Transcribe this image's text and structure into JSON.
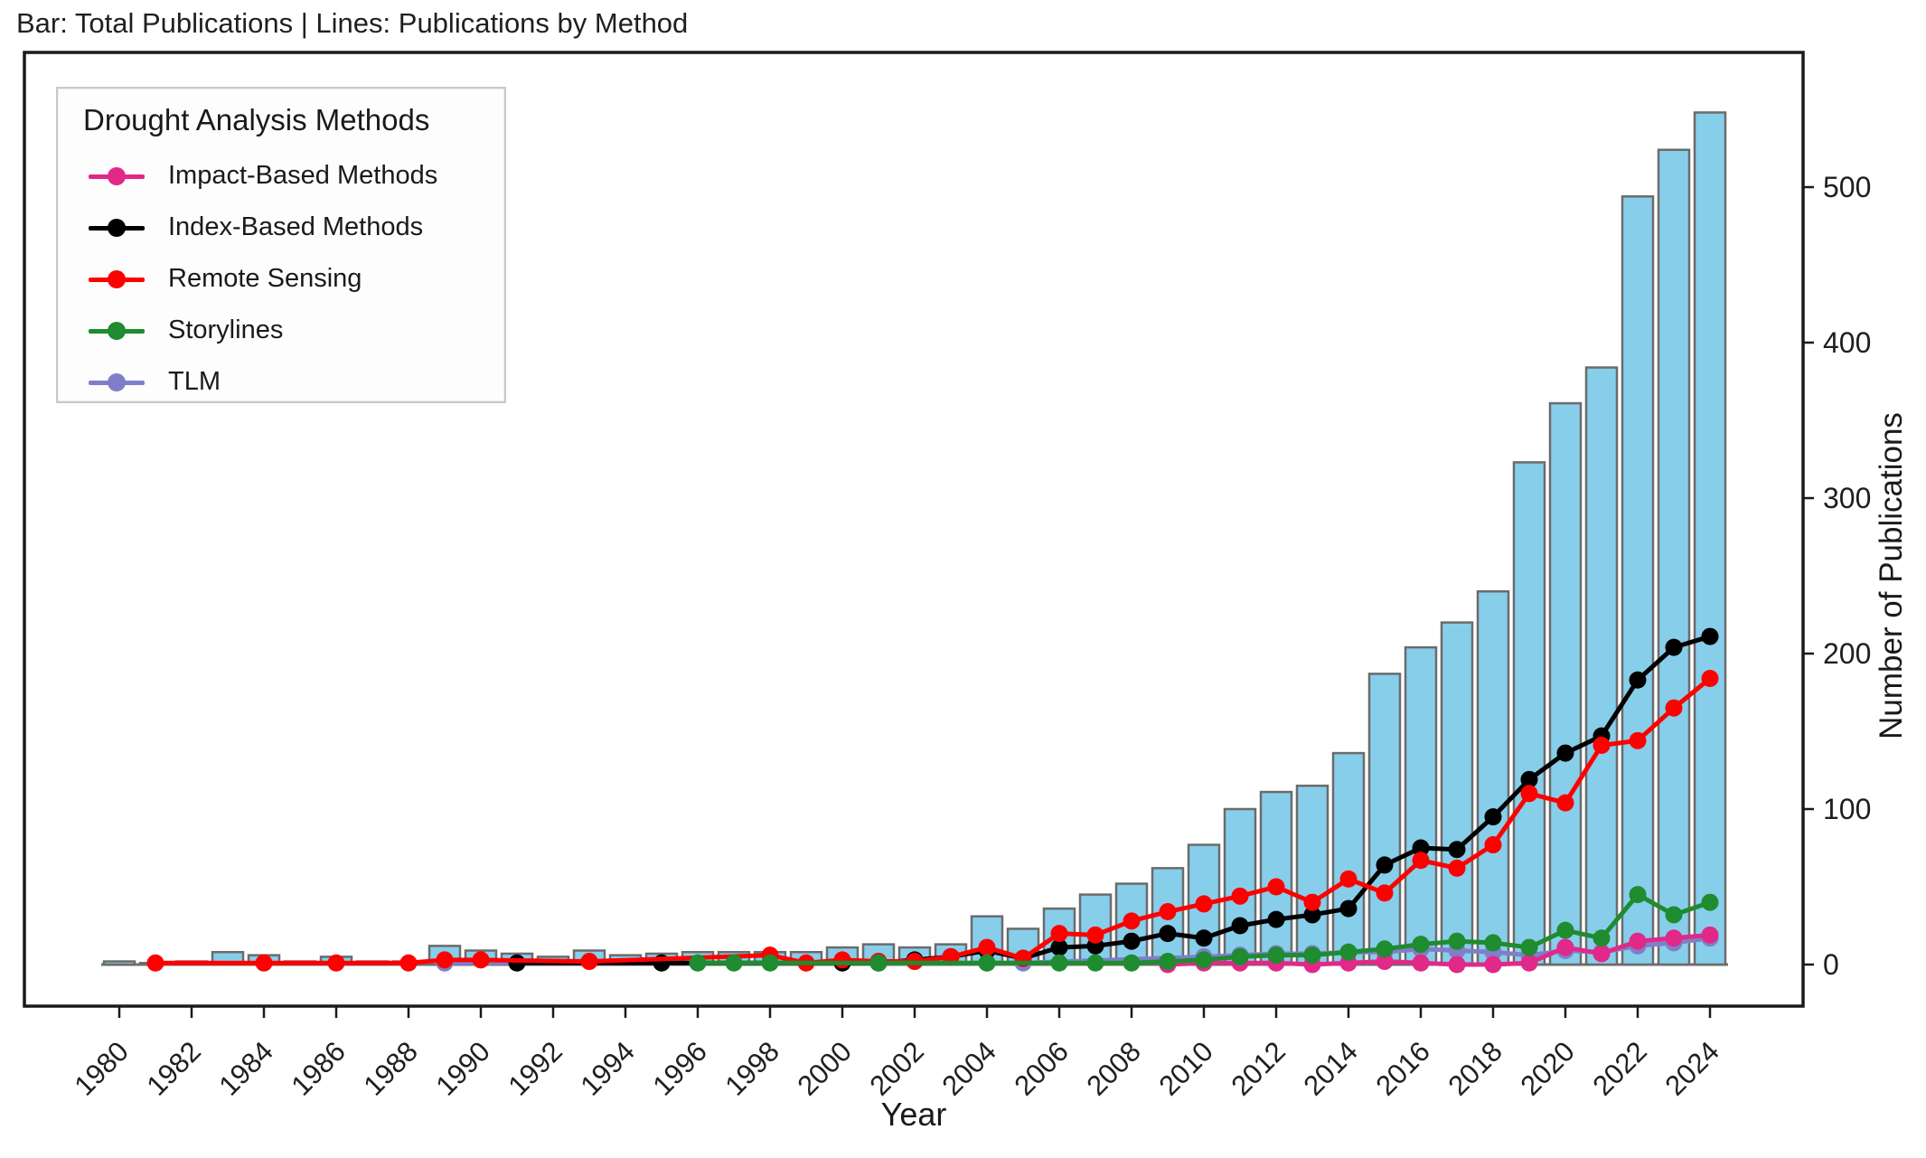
{
  "figure": {
    "title": "Bar: Total Publications | Lines: Publications by Method"
  },
  "axes": {
    "x_label": "Year",
    "y_label": "Number of Publications",
    "y_ticks": [
      0,
      100,
      200,
      300,
      400,
      500
    ],
    "x_ticks": [
      1980,
      1982,
      1984,
      1986,
      1988,
      1990,
      1992,
      1994,
      1996,
      1998,
      2000,
      2002,
      2004,
      2006,
      2008,
      2010,
      2012,
      2014,
      2016,
      2018,
      2020,
      2022,
      2024
    ],
    "y_axis_side": "right"
  },
  "legend": {
    "title": "Drought Analysis Methods",
    "items": [
      {
        "label": "Impact-Based Methods",
        "color": "#E02989"
      },
      {
        "label": "Index-Based Methods",
        "color": "#000000"
      },
      {
        "label": "Remote Sensing",
        "color": "#FF0000"
      },
      {
        "label": "Storylines",
        "color": "#1E8C2F"
      },
      {
        "label": "TLM",
        "color": "#7F7FC9"
      }
    ]
  },
  "chart_data": {
    "type": "combo: bar + line",
    "title": "Bar: Total Publications | Lines: Publications by Method",
    "xlabel": "Year",
    "ylabel": "Number of Publications",
    "xlim": [
      1977.4,
      2026.6
    ],
    "ylim": [
      -27,
      587
    ],
    "grid": false,
    "legend_position": "upper left",
    "bar_series": {
      "name": "Total Publications",
      "fill_color": "#87CEEB",
      "edge_color": "#6B6B6B",
      "categories": [
        1980,
        1981,
        1982,
        1983,
        1984,
        1985,
        1986,
        1987,
        1988,
        1989,
        1990,
        1991,
        1992,
        1993,
        1994,
        1995,
        1996,
        1997,
        1998,
        1999,
        2000,
        2001,
        2002,
        2003,
        2004,
        2005,
        2006,
        2007,
        2008,
        2009,
        2010,
        2011,
        2012,
        2013,
        2014,
        2015,
        2016,
        2017,
        2018,
        2019,
        2020,
        2021,
        2022,
        2023,
        2024
      ],
      "values": [
        2,
        1,
        2,
        8,
        6,
        2,
        5,
        2,
        2,
        12,
        9,
        7,
        5,
        9,
        6,
        7,
        8,
        8,
        8,
        8,
        11,
        13,
        11,
        13,
        31,
        23,
        36,
        45,
        52,
        62,
        77,
        100,
        111,
        115,
        136,
        187,
        204,
        220,
        240,
        323,
        361,
        384,
        494,
        524,
        548
      ]
    },
    "line_series": [
      {
        "name": "TLM",
        "color": "#7F7FC9",
        "points": [
          [
            1989,
            1
          ],
          [
            2004,
            1
          ],
          [
            2005,
            1
          ],
          [
            2010,
            5
          ],
          [
            2011,
            6
          ],
          [
            2012,
            7
          ],
          [
            2013,
            7
          ],
          [
            2014,
            8
          ],
          [
            2015,
            8
          ],
          [
            2016,
            10
          ],
          [
            2017,
            9
          ],
          [
            2018,
            8
          ],
          [
            2019,
            6
          ],
          [
            2020,
            9
          ],
          [
            2021,
            8
          ],
          [
            2022,
            12
          ],
          [
            2023,
            14
          ],
          [
            2024,
            17
          ]
        ]
      },
      {
        "name": "Impact-Based Methods",
        "color": "#E02989",
        "points": [
          [
            2009,
            0
          ],
          [
            2010,
            1
          ],
          [
            2011,
            1
          ],
          [
            2012,
            1
          ],
          [
            2013,
            0
          ],
          [
            2014,
            1
          ],
          [
            2015,
            2
          ],
          [
            2016,
            1
          ],
          [
            2017,
            0
          ],
          [
            2018,
            0
          ],
          [
            2019,
            1
          ],
          [
            2020,
            11
          ],
          [
            2021,
            7
          ],
          [
            2022,
            15
          ],
          [
            2023,
            17
          ],
          [
            2024,
            19
          ]
        ]
      },
      {
        "name": "Index-Based Methods",
        "color": "#000000",
        "points": [
          [
            1991,
            1
          ],
          [
            1995,
            1
          ],
          [
            2000,
            1
          ],
          [
            2001,
            1
          ],
          [
            2002,
            3
          ],
          [
            2003,
            5
          ],
          [
            2004,
            9
          ],
          [
            2005,
            4
          ],
          [
            2006,
            11
          ],
          [
            2007,
            12
          ],
          [
            2008,
            15
          ],
          [
            2009,
            20
          ],
          [
            2010,
            17
          ],
          [
            2011,
            25
          ],
          [
            2012,
            29
          ],
          [
            2013,
            32
          ],
          [
            2014,
            36
          ],
          [
            2015,
            64
          ],
          [
            2016,
            75
          ],
          [
            2017,
            74
          ],
          [
            2018,
            95
          ],
          [
            2019,
            119
          ],
          [
            2020,
            136
          ],
          [
            2021,
            147
          ],
          [
            2022,
            183
          ],
          [
            2023,
            204
          ],
          [
            2024,
            211
          ]
        ]
      },
      {
        "name": "Remote Sensing",
        "color": "#FF0000",
        "points": [
          [
            1981,
            1
          ],
          [
            1984,
            1
          ],
          [
            1986,
            1
          ],
          [
            1988,
            1
          ],
          [
            1989,
            3
          ],
          [
            1990,
            3
          ],
          [
            1993,
            2
          ],
          [
            1998,
            6
          ],
          [
            1999,
            1
          ],
          [
            2000,
            3
          ],
          [
            2001,
            2
          ],
          [
            2002,
            2
          ],
          [
            2003,
            5
          ],
          [
            2004,
            11
          ],
          [
            2005,
            4
          ],
          [
            2006,
            20
          ],
          [
            2007,
            19
          ],
          [
            2008,
            28
          ],
          [
            2009,
            34
          ],
          [
            2010,
            39
          ],
          [
            2011,
            44
          ],
          [
            2012,
            50
          ],
          [
            2013,
            40
          ],
          [
            2014,
            55
          ],
          [
            2015,
            46
          ],
          [
            2016,
            67
          ],
          [
            2017,
            62
          ],
          [
            2018,
            77
          ],
          [
            2019,
            110
          ],
          [
            2020,
            104
          ],
          [
            2021,
            141
          ],
          [
            2022,
            144
          ],
          [
            2023,
            165
          ],
          [
            2024,
            184
          ]
        ]
      },
      {
        "name": "Storylines",
        "color": "#1E8C2F",
        "points": [
          [
            1996,
            1
          ],
          [
            1997,
            1
          ],
          [
            1998,
            1
          ],
          [
            2001,
            1
          ],
          [
            2004,
            1
          ],
          [
            2006,
            1
          ],
          [
            2007,
            1
          ],
          [
            2008,
            1
          ],
          [
            2009,
            2
          ],
          [
            2010,
            3
          ],
          [
            2011,
            5
          ],
          [
            2012,
            6
          ],
          [
            2013,
            6
          ],
          [
            2014,
            8
          ],
          [
            2015,
            10
          ],
          [
            2016,
            13
          ],
          [
            2017,
            15
          ],
          [
            2018,
            14
          ],
          [
            2019,
            11
          ],
          [
            2020,
            22
          ],
          [
            2021,
            17
          ],
          [
            2022,
            45
          ],
          [
            2023,
            32
          ],
          [
            2024,
            40
          ]
        ]
      }
    ]
  }
}
